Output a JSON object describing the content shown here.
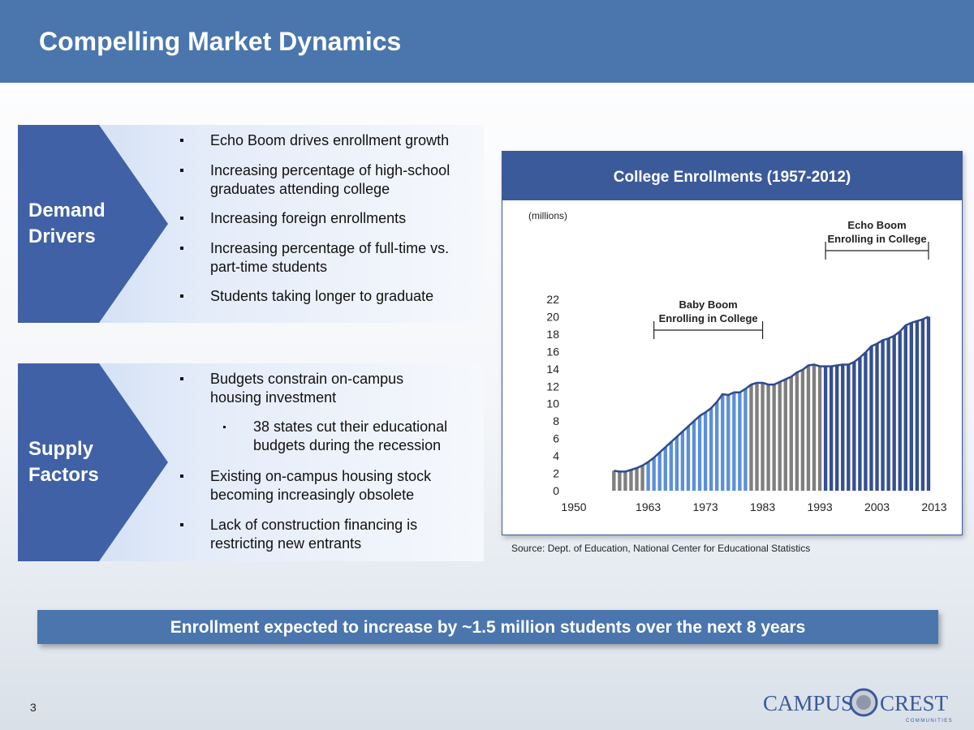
{
  "header": {
    "title": "Compelling Market Dynamics"
  },
  "demand": {
    "label_line1": "Demand",
    "label_line2": "Drivers",
    "bullets": [
      [
        "Echo Boom drives enrollment growth"
      ],
      [
        "Increasing percentage of high-school",
        "graduates attending college"
      ],
      [
        "Increasing foreign enrollments"
      ],
      [
        "Increasing percentage of full-time vs.",
        "part-time students"
      ],
      [
        "Students taking longer to graduate"
      ]
    ]
  },
  "supply": {
    "label_line1": "Supply",
    "label_line2": "Factors",
    "bullets": [
      [
        "Budgets constrain on-campus",
        "housing investment"
      ],
      [
        "38 states cut their educational",
        "budgets during the recession"
      ],
      [
        "Existing on-campus housing stock",
        "becoming increasingly obsolete"
      ],
      [
        "Lack of construction financing is",
        "restricting new entrants"
      ]
    ]
  },
  "chart_data": {
    "type": "bar",
    "title": "College Enrollments (1957-2012)",
    "unit_label": "(millions)",
    "ylim": [
      0,
      22
    ],
    "yticks": [
      "0",
      "2",
      "4",
      "6",
      "8",
      "10",
      "12",
      "14",
      "16",
      "18",
      "20",
      "22"
    ],
    "xticks": [
      "1950",
      "1963",
      "1973",
      "1983",
      "1993",
      "2003",
      "2013"
    ],
    "x": [
      1957,
      1958,
      1959,
      1960,
      1961,
      1962,
      1963,
      1964,
      1965,
      1966,
      1967,
      1968,
      1969,
      1970,
      1971,
      1972,
      1973,
      1974,
      1975,
      1976,
      1977,
      1978,
      1979,
      1980,
      1981,
      1982,
      1983,
      1984,
      1985,
      1986,
      1987,
      1988,
      1989,
      1990,
      1991,
      1992,
      1993,
      1994,
      1995,
      1996,
      1997,
      1998,
      1999,
      2000,
      2001,
      2002,
      2003,
      2004,
      2005,
      2006,
      2007,
      2008,
      2009,
      2010,
      2011,
      2012
    ],
    "values": [
      2.3,
      2.2,
      2.2,
      2.4,
      2.6,
      2.9,
      3.3,
      3.8,
      4.4,
      5.0,
      5.6,
      6.2,
      6.8,
      7.4,
      8.0,
      8.6,
      9.0,
      9.5,
      10.2,
      11.1,
      11.0,
      11.3,
      11.3,
      11.7,
      12.2,
      12.4,
      12.4,
      12.2,
      12.2,
      12.5,
      12.8,
      13.1,
      13.6,
      13.9,
      14.4,
      14.5,
      14.3,
      14.3,
      14.3,
      14.4,
      14.5,
      14.5,
      14.8,
      15.3,
      15.9,
      16.6,
      16.9,
      17.3,
      17.5,
      17.8,
      18.3,
      19.0,
      19.3,
      19.5,
      19.7,
      20.0
    ],
    "series": [
      {
        "name": "",
        "from": 1957,
        "to": 1962,
        "color": "#7f7f7f"
      },
      {
        "name": "",
        "from": 1963,
        "to": 1980,
        "color": "#5b8fd9"
      },
      {
        "name": "",
        "from": 1981,
        "to": 1993,
        "color": "#7f7f7f"
      },
      {
        "name": "",
        "from": 1994,
        "to": 2012,
        "color": "#35508f"
      }
    ],
    "annotations": [
      {
        "line1": "Baby Boom",
        "line2": "Enrolling in College",
        "from": 1964,
        "to": 1983
      },
      {
        "line1": "Echo Boom",
        "line2": "Enrolling in College",
        "from": 1994,
        "to": 2012
      }
    ],
    "source": "Source:  Dept. of Education, National Center for Educational Statistics",
    "grid": false
  },
  "callout": {
    "text": "Enrollment expected to increase by ~1.5 million students over the next 8 years"
  },
  "footer": {
    "page_number": "3"
  },
  "logo": {
    "word1": "Campus",
    "word2": "Crest",
    "tagline": "COMMUNITIES"
  },
  "colors": {
    "header": "#4a76ad",
    "chevron": "#4061a6",
    "chart_title_bar": "#3b5a9a"
  }
}
